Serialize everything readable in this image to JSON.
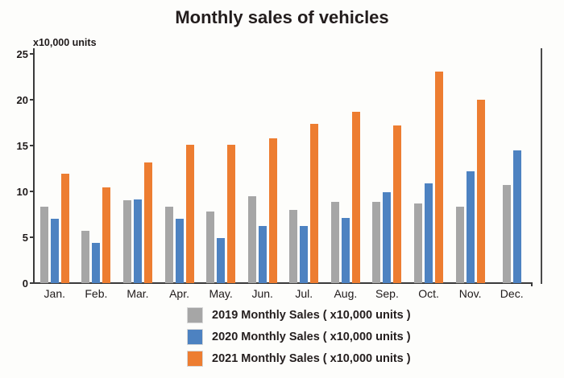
{
  "title": "Monthly sales of vehicles",
  "axis_unit_label": "x10,000 units",
  "chart_data": {
    "type": "bar",
    "title": "Monthly sales of vehicles",
    "ylabel": "x10,000 units",
    "xlabel": "",
    "ylim": [
      0,
      25
    ],
    "yticks": [
      0,
      5,
      10,
      15,
      20,
      25
    ],
    "grid": false,
    "legend_position": "bottom",
    "categories": [
      "Jan.",
      "Feb.",
      "Mar.",
      "Apr.",
      "May.",
      "Jun.",
      "Jul.",
      "Aug.",
      "Sep.",
      "Oct.",
      "Nov.",
      "Dec."
    ],
    "series": [
      {
        "name": "2019 Monthly Sales ( x10,000 units )",
        "color": "#A6A6A6",
        "values": [
          8.3,
          5.7,
          9.0,
          8.3,
          7.8,
          9.5,
          8.0,
          8.9,
          8.9,
          8.7,
          8.3,
          10.7
        ]
      },
      {
        "name": "2020 Monthly Sales ( x10,000 units )",
        "color": "#4D82C1",
        "values": [
          7.0,
          4.4,
          9.1,
          7.0,
          4.9,
          6.2,
          6.2,
          7.1,
          9.9,
          10.9,
          12.2,
          14.5
        ]
      },
      {
        "name": "2021 Monthly Sales ( x10,000 units )",
        "color": "#ED7D31",
        "values": [
          11.9,
          10.4,
          13.2,
          15.1,
          15.1,
          15.8,
          17.4,
          18.7,
          17.2,
          23.1,
          20.0,
          null
        ]
      }
    ]
  }
}
